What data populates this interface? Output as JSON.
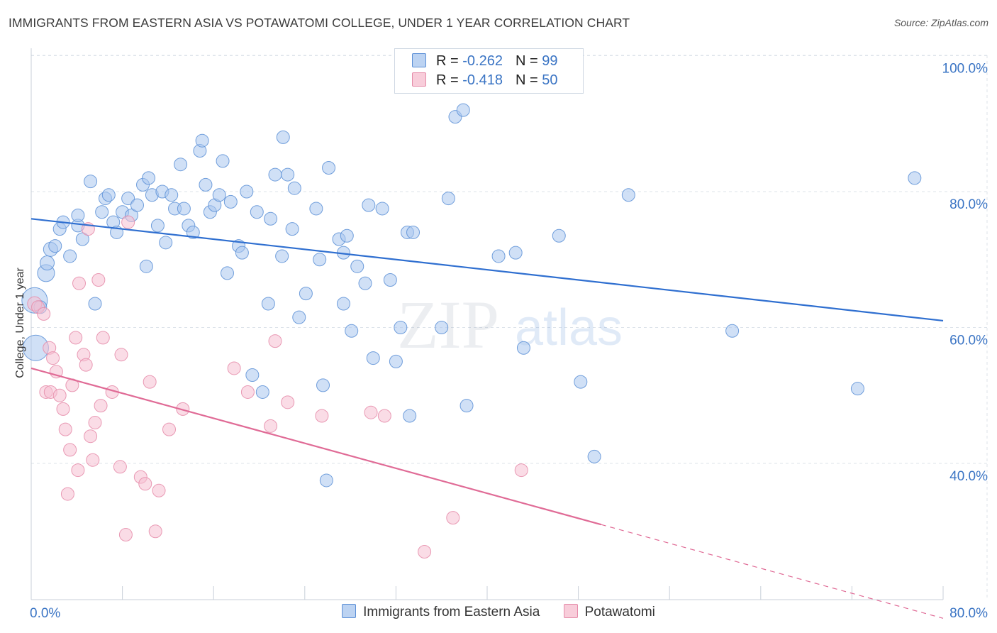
{
  "title": "IMMIGRANTS FROM EASTERN ASIA VS POTAWATOMI COLLEGE, UNDER 1 YEAR CORRELATION CHART",
  "source": "Source: ZipAtlas.com",
  "watermark": {
    "zip": "ZIP",
    "atlas": "atlas"
  },
  "legend": {
    "rows": [
      {
        "r_label": "R = ",
        "r_value": "-0.262",
        "n_label": "N = ",
        "n_value": "99"
      },
      {
        "r_label": "R = ",
        "r_value": "-0.418",
        "n_label": "N = ",
        "n_value": "50"
      }
    ]
  },
  "chart_data": {
    "type": "scatter",
    "xlabel": "",
    "ylabel": "College, Under 1 year",
    "xlim": [
      0,
      80
    ],
    "ylim": [
      20,
      102
    ],
    "x_tick_labels": [
      "0.0%",
      "80.0%"
    ],
    "y_ticks": [
      40,
      60,
      80,
      100
    ],
    "y_tick_labels": [
      "40.0%",
      "60.0%",
      "80.0%",
      "100.0%"
    ],
    "grid": true,
    "legend_position": "top-center",
    "series": [
      {
        "name": "Immigrants from Eastern Asia",
        "color": "#5b8fd6",
        "fill": "#a9c6ee",
        "trend": {
          "x": [
            0,
            80
          ],
          "y": [
            76.0,
            61.0
          ],
          "style": "solid",
          "color": "#2f6fd0"
        },
        "points": [
          [
            0.3,
            64.0,
            18
          ],
          [
            0.4,
            57.0,
            18
          ],
          [
            1.3,
            68.0,
            12
          ],
          [
            1.4,
            69.5,
            10
          ],
          [
            1.7,
            71.5,
            10
          ],
          [
            2.1,
            72.0,
            9
          ],
          [
            2.5,
            74.5,
            9
          ],
          [
            2.8,
            75.5,
            9
          ],
          [
            3.4,
            70.5,
            9
          ],
          [
            4.1,
            75.0,
            9
          ],
          [
            4.1,
            76.5,
            9
          ],
          [
            4.5,
            73.0,
            9
          ],
          [
            5.2,
            81.5,
            9
          ],
          [
            5.6,
            63.5,
            9
          ],
          [
            6.2,
            77.0,
            9
          ],
          [
            6.5,
            79.0,
            9
          ],
          [
            6.8,
            79.5,
            9
          ],
          [
            7.2,
            75.5,
            9
          ],
          [
            7.5,
            74.0,
            9
          ],
          [
            8.0,
            77.0,
            9
          ],
          [
            8.5,
            79.0,
            9
          ],
          [
            8.8,
            76.5,
            9
          ],
          [
            9.3,
            78.0,
            9
          ],
          [
            9.8,
            81.0,
            9
          ],
          [
            10.1,
            69.0,
            9
          ],
          [
            10.3,
            82.0,
            9
          ],
          [
            10.6,
            79.5,
            9
          ],
          [
            11.1,
            75.0,
            9
          ],
          [
            11.5,
            80.0,
            9
          ],
          [
            11.8,
            72.5,
            9
          ],
          [
            12.3,
            79.5,
            9
          ],
          [
            12.6,
            77.5,
            9
          ],
          [
            13.1,
            84.0,
            9
          ],
          [
            13.4,
            77.5,
            9
          ],
          [
            13.8,
            75.0,
            9
          ],
          [
            14.2,
            74.0,
            9
          ],
          [
            14.8,
            86.0,
            9
          ],
          [
            15.0,
            87.5,
            9
          ],
          [
            15.3,
            81.0,
            9
          ],
          [
            15.7,
            77.0,
            9
          ],
          [
            16.1,
            78.0,
            9
          ],
          [
            16.5,
            79.5,
            9
          ],
          [
            16.8,
            84.5,
            9
          ],
          [
            17.2,
            68.0,
            9
          ],
          [
            17.5,
            78.5,
            9
          ],
          [
            18.2,
            72.0,
            9
          ],
          [
            18.5,
            71.0,
            9
          ],
          [
            18.9,
            80.0,
            9
          ],
          [
            19.4,
            53.0,
            9
          ],
          [
            19.8,
            77.0,
            9
          ],
          [
            20.3,
            50.5,
            9
          ],
          [
            20.8,
            63.5,
            9
          ],
          [
            21.0,
            76.0,
            9
          ],
          [
            21.4,
            82.5,
            9
          ],
          [
            22.0,
            70.5,
            9
          ],
          [
            22.1,
            88.0,
            9
          ],
          [
            22.5,
            82.5,
            9
          ],
          [
            22.9,
            74.5,
            9
          ],
          [
            23.1,
            80.5,
            9
          ],
          [
            23.5,
            61.5,
            9
          ],
          [
            24.1,
            65.0,
            9
          ],
          [
            25.0,
            77.5,
            9
          ],
          [
            25.3,
            70.0,
            9
          ],
          [
            25.6,
            51.5,
            9
          ],
          [
            25.9,
            37.5,
            9
          ],
          [
            26.1,
            83.5,
            9
          ],
          [
            27.0,
            73.0,
            9
          ],
          [
            27.4,
            71.0,
            9
          ],
          [
            27.4,
            63.5,
            9
          ],
          [
            27.7,
            73.5,
            9
          ],
          [
            28.1,
            59.5,
            9
          ],
          [
            28.6,
            69.0,
            9
          ],
          [
            29.3,
            66.5,
            9
          ],
          [
            29.6,
            78.0,
            9
          ],
          [
            30.0,
            55.5,
            9
          ],
          [
            30.8,
            77.5,
            9
          ],
          [
            31.5,
            67.0,
            9
          ],
          [
            32.0,
            55.0,
            9
          ],
          [
            32.4,
            60.0,
            9
          ],
          [
            33.0,
            74.0,
            9
          ],
          [
            33.2,
            47.0,
            9
          ],
          [
            33.5,
            74.0,
            9
          ],
          [
            36.0,
            60.0,
            9
          ],
          [
            36.6,
            79.0,
            9
          ],
          [
            37.2,
            91.0,
            9
          ],
          [
            37.9,
            92.0,
            9
          ],
          [
            38.2,
            48.5,
            9
          ],
          [
            41.0,
            70.5,
            9
          ],
          [
            42.5,
            71.0,
            9
          ],
          [
            43.2,
            57.0,
            9
          ],
          [
            46.3,
            73.5,
            9
          ],
          [
            48.2,
            52.0,
            9
          ],
          [
            49.4,
            41.0,
            9
          ],
          [
            52.4,
            79.5,
            9
          ],
          [
            61.5,
            59.5,
            9
          ],
          [
            72.5,
            51.0,
            9
          ],
          [
            77.5,
            82.0,
            9
          ],
          [
            37.0,
            96.5,
            9
          ],
          [
            0.8,
            63.0,
            9
          ]
        ]
      },
      {
        "name": "Potawatomi",
        "color": "#e58aa8",
        "fill": "#f6c0d2",
        "trend": {
          "x": [
            0,
            50
          ],
          "y": [
            54.0,
            31.0
          ],
          "style": "solid",
          "color": "#e06b96",
          "extension": {
            "x": [
              50,
              80
            ],
            "y": [
              31.0,
              17.2
            ],
            "style": "dashed"
          }
        },
        "points": [
          [
            0.3,
            63.5,
            10
          ],
          [
            0.6,
            63.0,
            9
          ],
          [
            1.1,
            62.0,
            9
          ],
          [
            1.3,
            50.5,
            9
          ],
          [
            1.6,
            57.0,
            9
          ],
          [
            1.7,
            50.5,
            9
          ],
          [
            1.9,
            55.5,
            9
          ],
          [
            2.2,
            53.5,
            9
          ],
          [
            2.5,
            50.0,
            9
          ],
          [
            2.8,
            48.0,
            9
          ],
          [
            3.0,
            45.0,
            9
          ],
          [
            3.2,
            35.5,
            9
          ],
          [
            3.4,
            42.0,
            9
          ],
          [
            3.6,
            51.5,
            9
          ],
          [
            3.9,
            58.5,
            9
          ],
          [
            4.1,
            39.0,
            9
          ],
          [
            4.2,
            66.5,
            9
          ],
          [
            4.6,
            56.0,
            9
          ],
          [
            4.8,
            54.5,
            9
          ],
          [
            5.0,
            74.5,
            9
          ],
          [
            5.2,
            44.0,
            9
          ],
          [
            5.4,
            40.5,
            9
          ],
          [
            5.6,
            46.0,
            9
          ],
          [
            5.9,
            67.0,
            9
          ],
          [
            6.1,
            48.5,
            9
          ],
          [
            6.3,
            58.5,
            9
          ],
          [
            7.1,
            50.5,
            9
          ],
          [
            7.8,
            39.5,
            9
          ],
          [
            7.9,
            56.0,
            9
          ],
          [
            8.3,
            29.5,
            9
          ],
          [
            8.5,
            75.5,
            9
          ],
          [
            9.6,
            38.0,
            9
          ],
          [
            10.0,
            37.0,
            9
          ],
          [
            10.4,
            52.0,
            9
          ],
          [
            10.9,
            30.0,
            9
          ],
          [
            11.2,
            36.0,
            9
          ],
          [
            12.1,
            45.0,
            9
          ],
          [
            13.3,
            48.0,
            9
          ],
          [
            17.8,
            54.0,
            9
          ],
          [
            19.0,
            50.5,
            9
          ],
          [
            21.0,
            45.5,
            9
          ],
          [
            21.4,
            58.0,
            9
          ],
          [
            22.5,
            49.0,
            9
          ],
          [
            25.5,
            47.0,
            9
          ],
          [
            29.8,
            47.5,
            9
          ],
          [
            31.0,
            47.0,
            9
          ],
          [
            34.5,
            27.0,
            9
          ],
          [
            37.0,
            32.0,
            9
          ],
          [
            43.0,
            39.0,
            9
          ],
          [
            22.0,
            45.0,
            0
          ]
        ]
      }
    ]
  }
}
